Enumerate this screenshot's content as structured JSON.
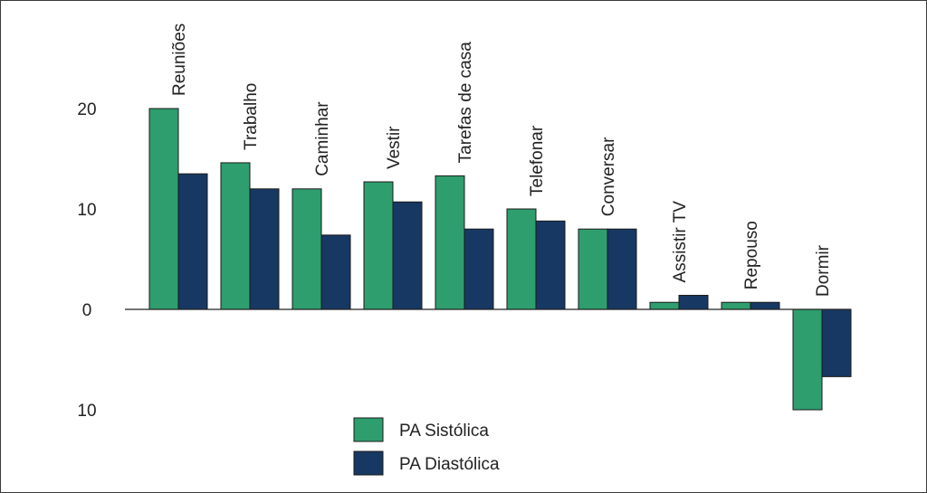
{
  "chart_data": {
    "type": "bar",
    "title": "",
    "xlabel": "",
    "ylabel": "",
    "ylim": [
      -10.5,
      21
    ],
    "y_ticks": [
      {
        "value": 20,
        "label": "20"
      },
      {
        "value": 10,
        "label": "10"
      },
      {
        "value": 0,
        "label": "0"
      },
      {
        "value": -10,
        "label": "10"
      }
    ],
    "categories": [
      "Reuniões",
      "Trabalho",
      "Caminhar",
      "Vestir",
      "Tarefas de casa",
      "Telefonar",
      "Conversar",
      "Assistir TV",
      "Repouso",
      "Dormir"
    ],
    "series": [
      {
        "name": "PA Sistólica",
        "color": "#2e9e6e",
        "values": [
          20,
          14.6,
          12,
          12.7,
          13.3,
          10,
          8,
          0.7,
          0.7,
          -10
        ]
      },
      {
        "name": "PA Diastólica",
        "color": "#173863",
        "values": [
          13.5,
          12,
          7.4,
          10.7,
          8,
          8.8,
          8,
          1.4,
          0.7,
          -6.7
        ]
      }
    ],
    "legend_position": "bottom-center",
    "grid": false
  }
}
